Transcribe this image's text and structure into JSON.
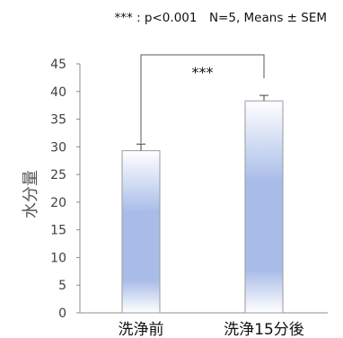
{
  "chart_data": {
    "type": "bar",
    "categories": [
      "洗浄前",
      "洗浄15分後"
    ],
    "values": [
      29.3,
      38.3
    ],
    "errors": [
      1.2,
      1.0
    ],
    "ylabel": "水分量",
    "xlabel": "",
    "ylim": [
      0,
      45
    ],
    "yticks": [
      0,
      5,
      10,
      15,
      20,
      25,
      30,
      35,
      40,
      45
    ],
    "grid": false,
    "annotation": "*** : p<0.001　N=5, Means ± SEM",
    "significance": "***",
    "bar_color": "#a9bce8",
    "bar_edge_color": "#9a9a9a"
  }
}
